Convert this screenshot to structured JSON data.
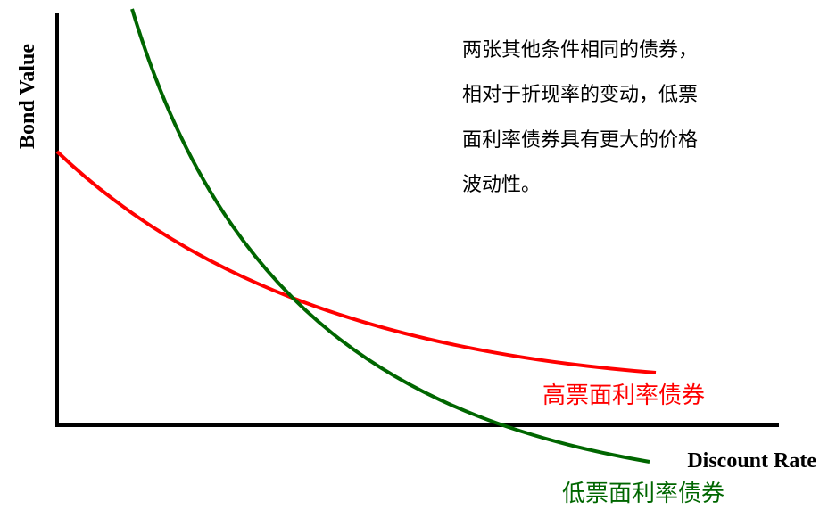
{
  "diagram": {
    "y_axis_label": "Bond Value",
    "x_axis_label": "Discount Rate",
    "annotation": [
      "两张其他条件相同的债券，",
      "相对于折现率的变动，低票",
      "面利率债券具有更大的价格",
      "波动性。"
    ],
    "curves": [
      {
        "label": "高票面利率债券",
        "color": "#ff0000"
      },
      {
        "label": "低票面利率债券",
        "color": "#006600"
      }
    ]
  }
}
